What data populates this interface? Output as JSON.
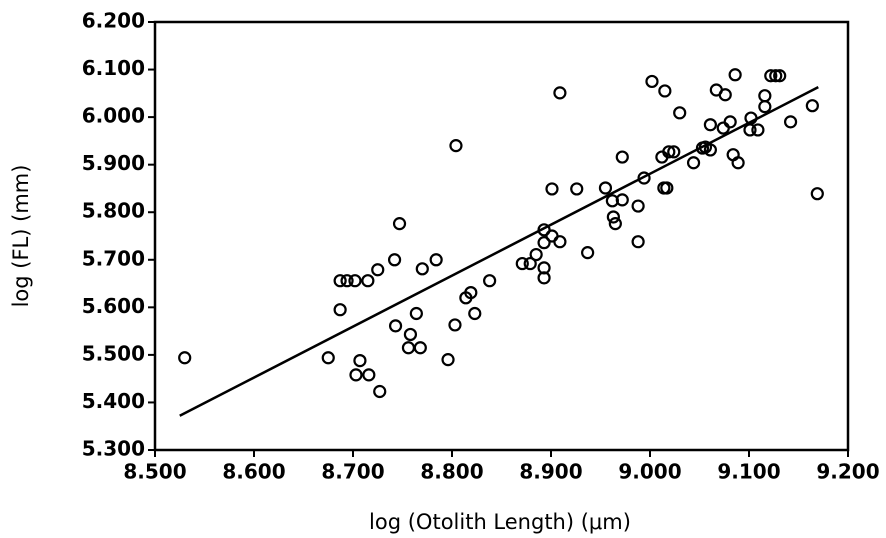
{
  "chart_data": {
    "type": "scatter",
    "xlabel": "log (Otolith Length)  (μm)",
    "ylabel": "log (FL)  (mm)",
    "xlim": [
      8.5,
      9.2
    ],
    "ylim": [
      5.3,
      6.2
    ],
    "xticks": [
      {
        "value": 8.5,
        "label": "8.500"
      },
      {
        "value": 8.6,
        "label": "8.600"
      },
      {
        "value": 8.7,
        "label": "8.700"
      },
      {
        "value": 8.8,
        "label": "8.800"
      },
      {
        "value": 8.9,
        "label": "8.900"
      },
      {
        "value": 9.0,
        "label": "9.000"
      },
      {
        "value": 9.1,
        "label": "9.100"
      },
      {
        "value": 9.2,
        "label": "9.200"
      }
    ],
    "yticks": [
      {
        "value": 5.3,
        "label": "5.300"
      },
      {
        "value": 5.4,
        "label": "5.400"
      },
      {
        "value": 5.5,
        "label": "5.500"
      },
      {
        "value": 5.6,
        "label": "5.600"
      },
      {
        "value": 5.7,
        "label": "5.700"
      },
      {
        "value": 5.8,
        "label": "5.800"
      },
      {
        "value": 5.9,
        "label": "5.900"
      },
      {
        "value": 6.0,
        "label": "6.000"
      },
      {
        "value": 6.1,
        "label": "6.100"
      },
      {
        "value": 6.2,
        "label": "6.200"
      }
    ],
    "color": "#000000",
    "points": {
      "x": [
        8.53,
        8.675,
        8.687,
        8.694,
        8.702,
        8.715,
        8.725,
        8.742,
        8.747,
        8.687,
        8.703,
        8.707,
        8.716,
        8.727,
        8.743,
        8.756,
        8.758,
        8.764,
        8.768,
        8.77,
        8.784,
        8.796,
        8.803,
        8.814,
        8.819,
        8.823,
        8.804,
        8.838,
        8.871,
        8.879,
        8.885,
        8.893,
        8.893,
        8.893,
        8.893,
        8.901,
        8.901,
        8.909,
        8.909,
        8.926,
        8.937,
        8.955,
        8.962,
        8.963,
        8.965,
        8.972,
        8.972,
        8.988,
        8.988,
        8.994,
        9.002,
        9.015,
        9.012,
        9.014,
        9.017,
        9.019,
        9.024,
        9.03,
        9.044,
        9.053,
        9.056,
        9.061,
        9.061,
        9.067,
        9.076,
        9.074,
        9.081,
        9.084,
        9.089,
        9.086,
        9.102,
        9.101,
        9.109,
        9.116,
        9.116,
        9.122,
        9.127,
        9.131,
        9.142,
        9.164,
        9.169
      ],
      "y": [
        5.494,
        5.494,
        5.656,
        5.656,
        5.656,
        5.656,
        5.679,
        5.7,
        5.776,
        5.595,
        5.458,
        5.488,
        5.458,
        5.423,
        5.561,
        5.515,
        5.543,
        5.587,
        5.515,
        5.681,
        5.7,
        5.49,
        5.563,
        5.62,
        5.631,
        5.587,
        5.94,
        5.656,
        5.692,
        5.692,
        5.711,
        5.763,
        5.736,
        5.683,
        5.662,
        5.75,
        5.849,
        5.738,
        6.051,
        5.849,
        5.715,
        5.851,
        5.824,
        5.79,
        5.776,
        5.826,
        5.916,
        5.813,
        5.738,
        5.872,
        6.075,
        6.055,
        5.916,
        5.851,
        5.851,
        5.927,
        5.927,
        6.009,
        5.904,
        5.935,
        5.937,
        5.984,
        5.931,
        6.057,
        6.047,
        5.977,
        5.99,
        5.921,
        5.904,
        6.089,
        5.998,
        5.973,
        5.973,
        6.045,
        6.022,
        6.087,
        6.087,
        6.087,
        5.99,
        6.024,
        5.839
      ]
    },
    "fit_line": {
      "x": [
        8.525,
        9.17
      ],
      "y": [
        5.372,
        6.063
      ]
    }
  }
}
